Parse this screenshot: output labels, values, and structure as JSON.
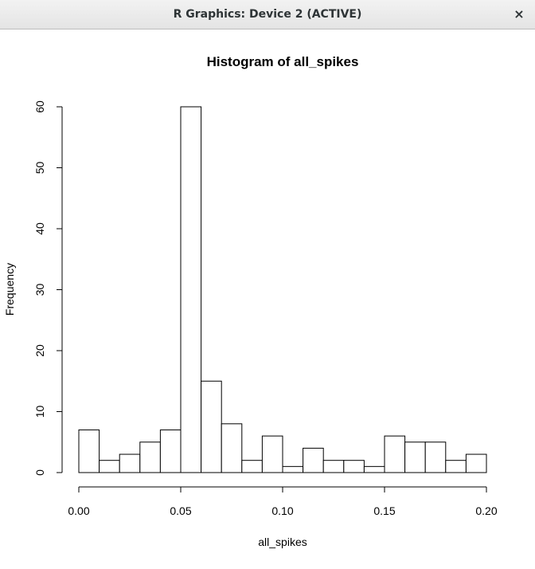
{
  "window": {
    "title": "R Graphics: Device 2 (ACTIVE)",
    "close_glyph": "×"
  },
  "chart_data": {
    "type": "bar",
    "title": "Histogram of all_spikes",
    "xlabel": "all_spikes",
    "ylabel": "Frequency",
    "bin_edges": [
      0.0,
      0.01,
      0.02,
      0.03,
      0.04,
      0.05,
      0.06,
      0.07,
      0.08,
      0.09,
      0.1,
      0.11,
      0.12,
      0.13,
      0.14,
      0.15,
      0.16,
      0.17,
      0.18,
      0.19,
      0.2
    ],
    "values": [
      7,
      2,
      3,
      5,
      7,
      60,
      15,
      8,
      2,
      6,
      1,
      4,
      2,
      2,
      1,
      6,
      5,
      5,
      2,
      3
    ],
    "xlim": [
      0.0,
      0.2
    ],
    "ylim": [
      0,
      60
    ],
    "x_ticks": [
      0.0,
      0.05,
      0.1,
      0.15,
      0.2
    ],
    "x_tick_labels": [
      "0.00",
      "0.05",
      "0.10",
      "0.15",
      "0.20"
    ],
    "y_ticks": [
      0,
      10,
      20,
      30,
      40,
      50,
      60
    ],
    "y_tick_labels": [
      "0",
      "10",
      "20",
      "30",
      "40",
      "50",
      "60"
    ],
    "bar_fill": "#ffffff",
    "bar_stroke": "#000000",
    "grid": false
  }
}
